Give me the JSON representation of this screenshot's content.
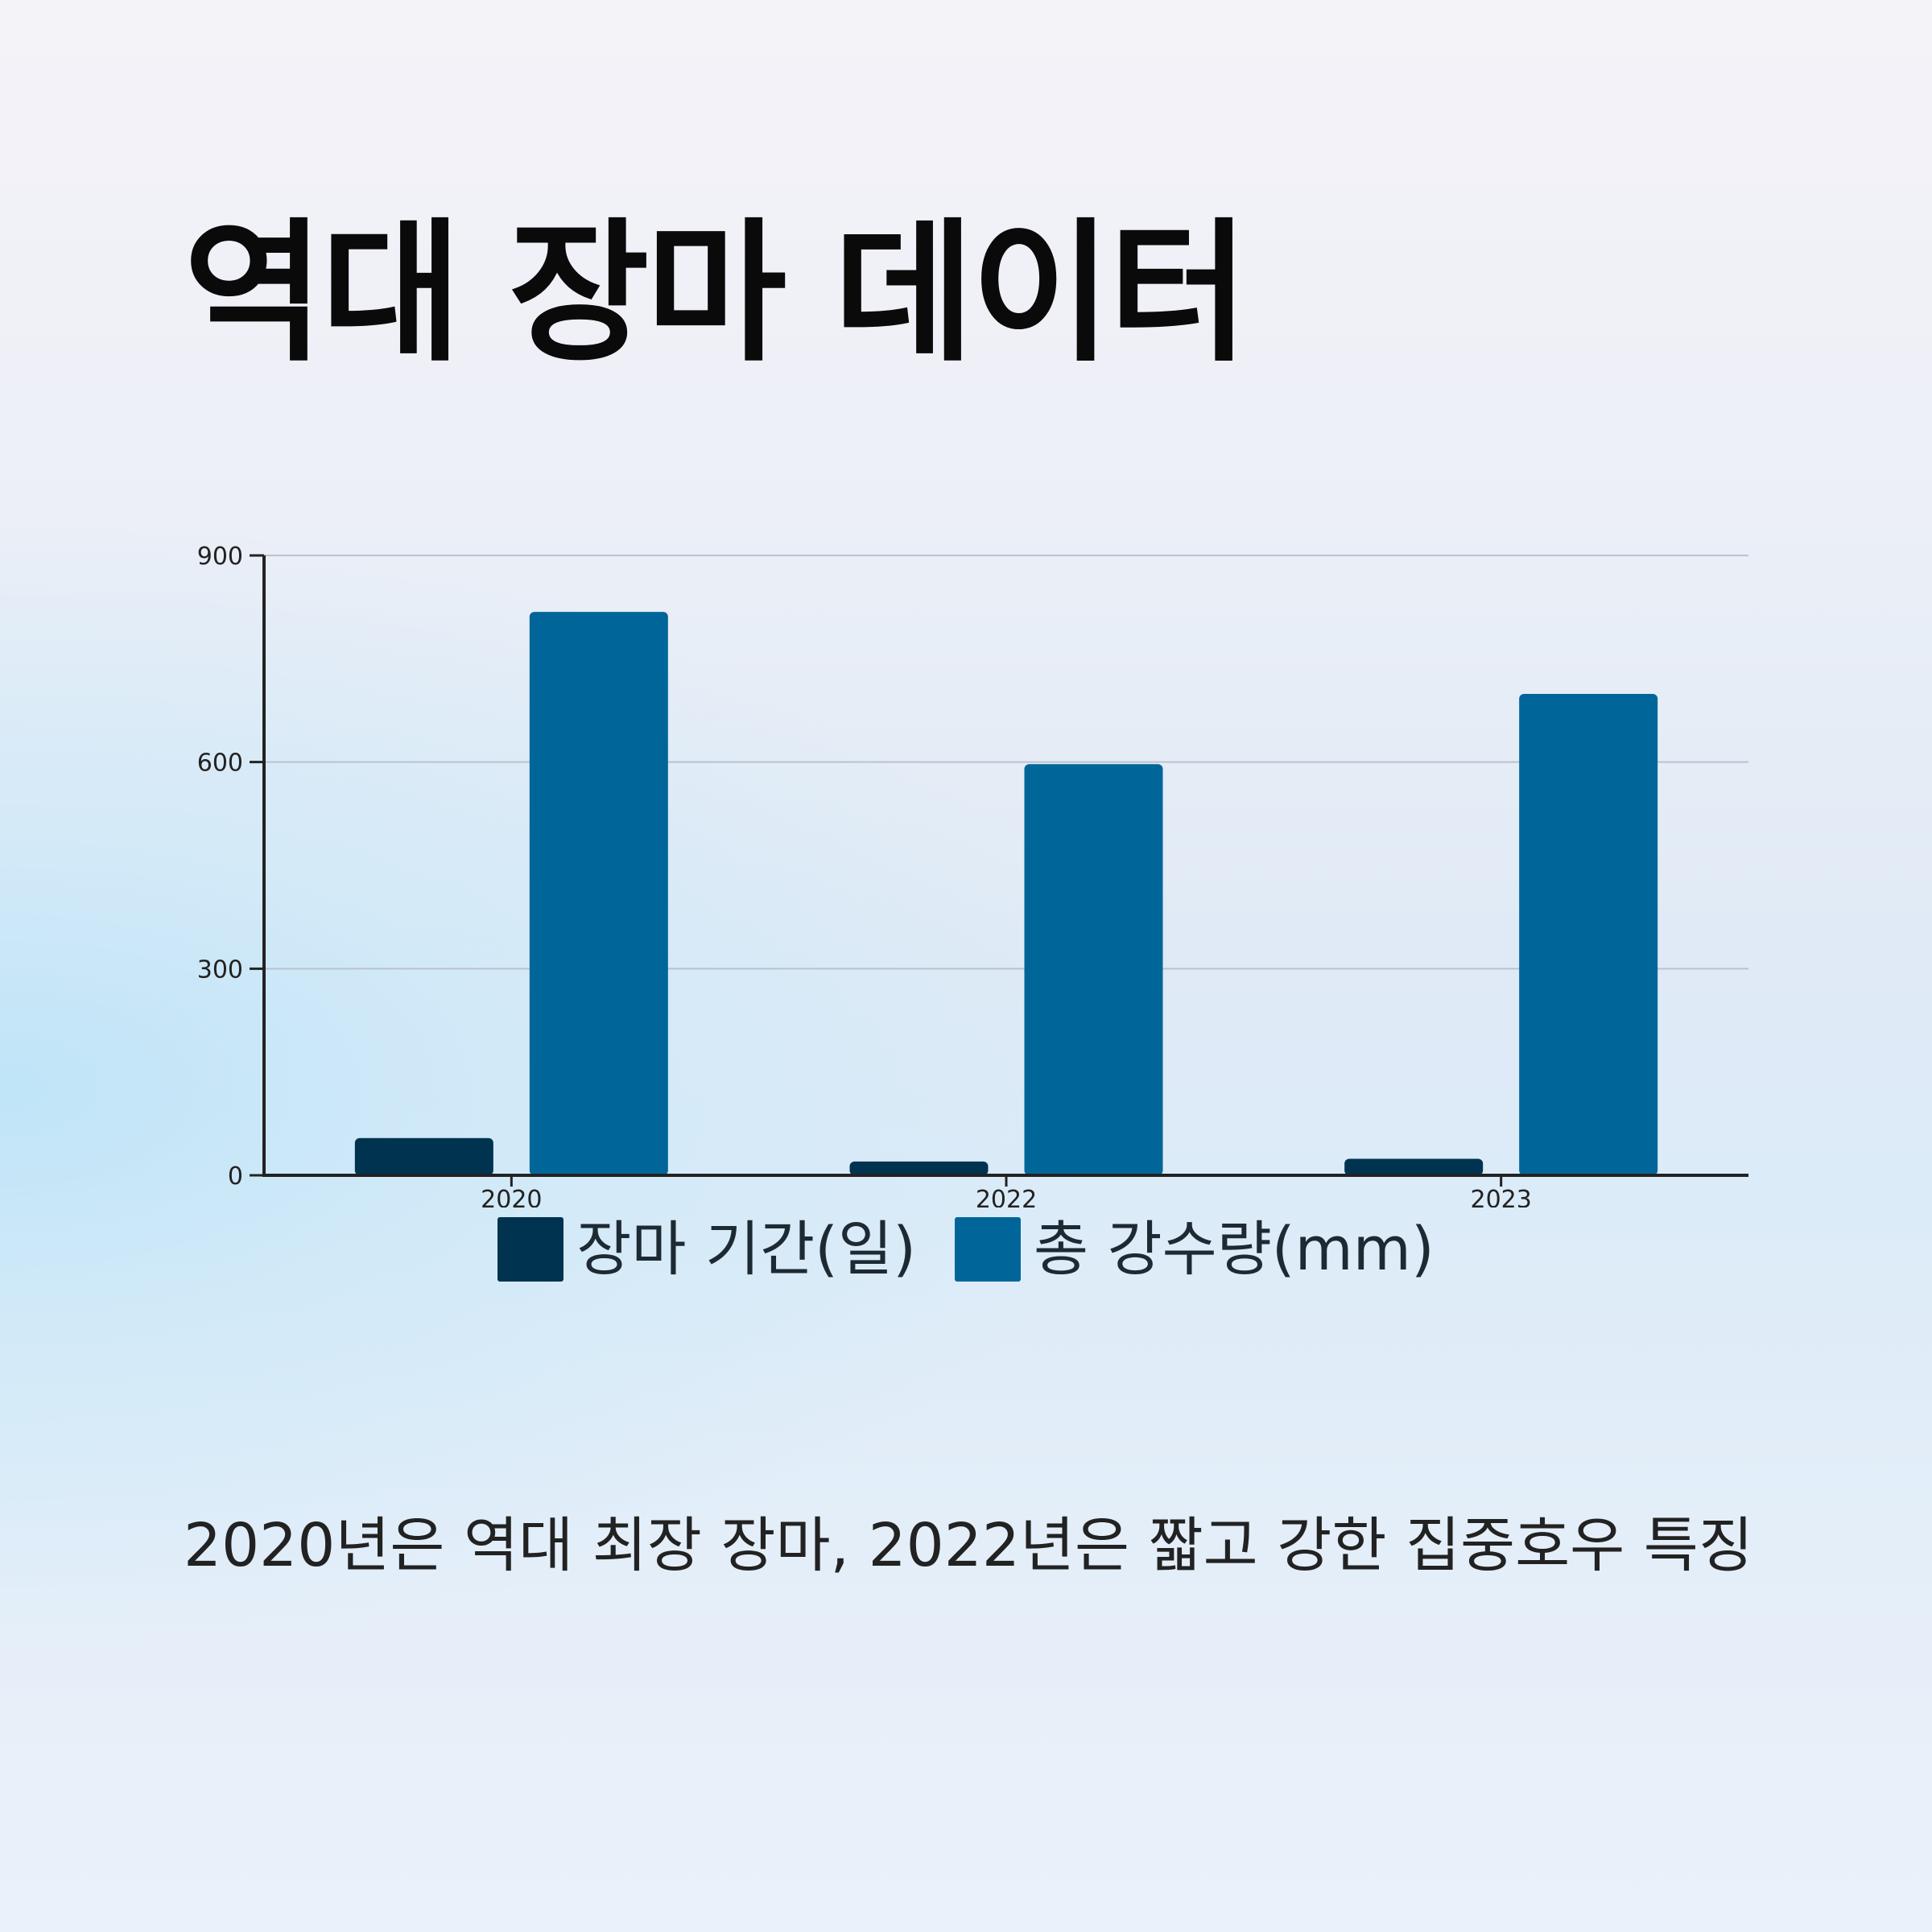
{
  "title": "역대 장마 데이터",
  "caption": "2020년은 역대 최장 장마, 2022년은 짧고 강한 집중호우 특징",
  "colors": {
    "days": "#00334f",
    "rain": "#006699",
    "axis": "#222222",
    "grid": "#b9c3d0"
  },
  "chart_data": {
    "type": "bar",
    "categories": [
      "2020",
      "2022",
      "2023"
    ],
    "series": [
      {
        "name": "장마 기간(일)",
        "values": [
          54,
          20,
          24
        ]
      },
      {
        "name": "총 강수량(mm)",
        "values": [
          818,
          597,
          699
        ]
      }
    ],
    "yticks": [
      "0",
      "300",
      "600",
      "900"
    ],
    "ylim": [
      0,
      900
    ],
    "grid": true,
    "legend": "bottom"
  }
}
